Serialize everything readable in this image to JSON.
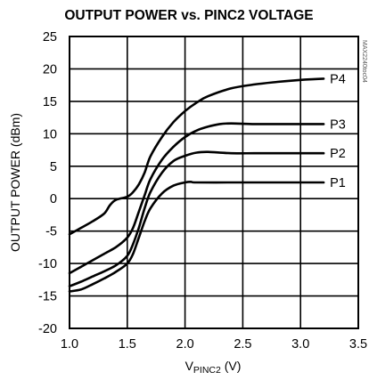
{
  "chart_data": {
    "type": "line",
    "title": "OUTPUT POWER vs. PINC2 VOLTAGE",
    "xlabel": "V",
    "xlabel_subscript": "PINC2",
    "xlabel_unit": " (V)",
    "ylabel": "OUTPUT POWER (dBm)",
    "xlim": [
      1.0,
      3.5
    ],
    "ylim": [
      -20,
      25
    ],
    "x_ticks": [
      1.0,
      1.5,
      2.0,
      2.5,
      3.0,
      3.5
    ],
    "x_tick_labels": [
      "1.0",
      "1.5",
      "2.0",
      "2.5",
      "3.0",
      "3.5"
    ],
    "y_ticks": [
      -20,
      -15,
      -10,
      -5,
      0,
      5,
      10,
      15,
      20,
      25
    ],
    "y_tick_labels": [
      "-20",
      "-15",
      "-10",
      "-5",
      "0",
      "5",
      "10",
      "15",
      "20",
      "25"
    ],
    "grid": true,
    "watermark": "MAX2240toc04",
    "series": [
      {
        "name": "P4",
        "x": [
          1.0,
          1.1,
          1.2,
          1.3,
          1.35,
          1.4,
          1.5,
          1.55,
          1.6,
          1.65,
          1.7,
          1.8,
          1.9,
          2.0,
          2.1,
          2.2,
          2.4,
          2.6,
          2.8,
          3.0,
          3.1,
          3.2
        ],
        "y": [
          -5.5,
          -4.5,
          -3.5,
          -2.3,
          -1.0,
          -0.2,
          0.3,
          1.0,
          2.2,
          4.0,
          6.5,
          9.5,
          11.8,
          13.5,
          14.8,
          15.8,
          17.0,
          17.6,
          18.0,
          18.3,
          18.4,
          18.5
        ]
      },
      {
        "name": "P3",
        "x": [
          1.0,
          1.1,
          1.2,
          1.3,
          1.4,
          1.5,
          1.55,
          1.6,
          1.65,
          1.7,
          1.8,
          1.9,
          2.0,
          2.1,
          2.2,
          2.3,
          2.4,
          2.6,
          2.8,
          3.0,
          3.2
        ],
        "y": [
          -11.5,
          -10.5,
          -9.5,
          -8.5,
          -7.5,
          -6.0,
          -4.5,
          -2.0,
          0.5,
          3.0,
          6.0,
          8.0,
          9.5,
          10.5,
          11.1,
          11.5,
          11.6,
          11.5,
          11.5,
          11.5,
          11.5
        ]
      },
      {
        "name": "P2",
        "x": [
          1.0,
          1.1,
          1.2,
          1.3,
          1.4,
          1.5,
          1.55,
          1.6,
          1.65,
          1.7,
          1.8,
          1.9,
          2.0,
          2.1,
          2.2,
          2.4,
          2.6,
          2.8,
          3.0,
          3.2
        ],
        "y": [
          -13.5,
          -12.8,
          -12.0,
          -11.2,
          -10.3,
          -8.8,
          -7.0,
          -4.5,
          -1.5,
          1.0,
          4.0,
          5.8,
          6.6,
          7.1,
          7.2,
          7.0,
          7.0,
          7.0,
          7.0,
          7.0
        ]
      },
      {
        "name": "P1",
        "x": [
          1.0,
          1.1,
          1.2,
          1.3,
          1.4,
          1.5,
          1.55,
          1.6,
          1.65,
          1.7,
          1.8,
          1.9,
          2.0,
          2.05,
          2.1,
          2.4,
          2.6,
          2.8,
          3.0,
          3.2
        ],
        "y": [
          -14.3,
          -14.0,
          -13.2,
          -12.3,
          -11.3,
          -10.0,
          -8.5,
          -6.0,
          -3.5,
          -1.5,
          0.8,
          2.0,
          2.5,
          2.6,
          2.5,
          2.5,
          2.5,
          2.5,
          2.5,
          2.5
        ]
      }
    ]
  }
}
